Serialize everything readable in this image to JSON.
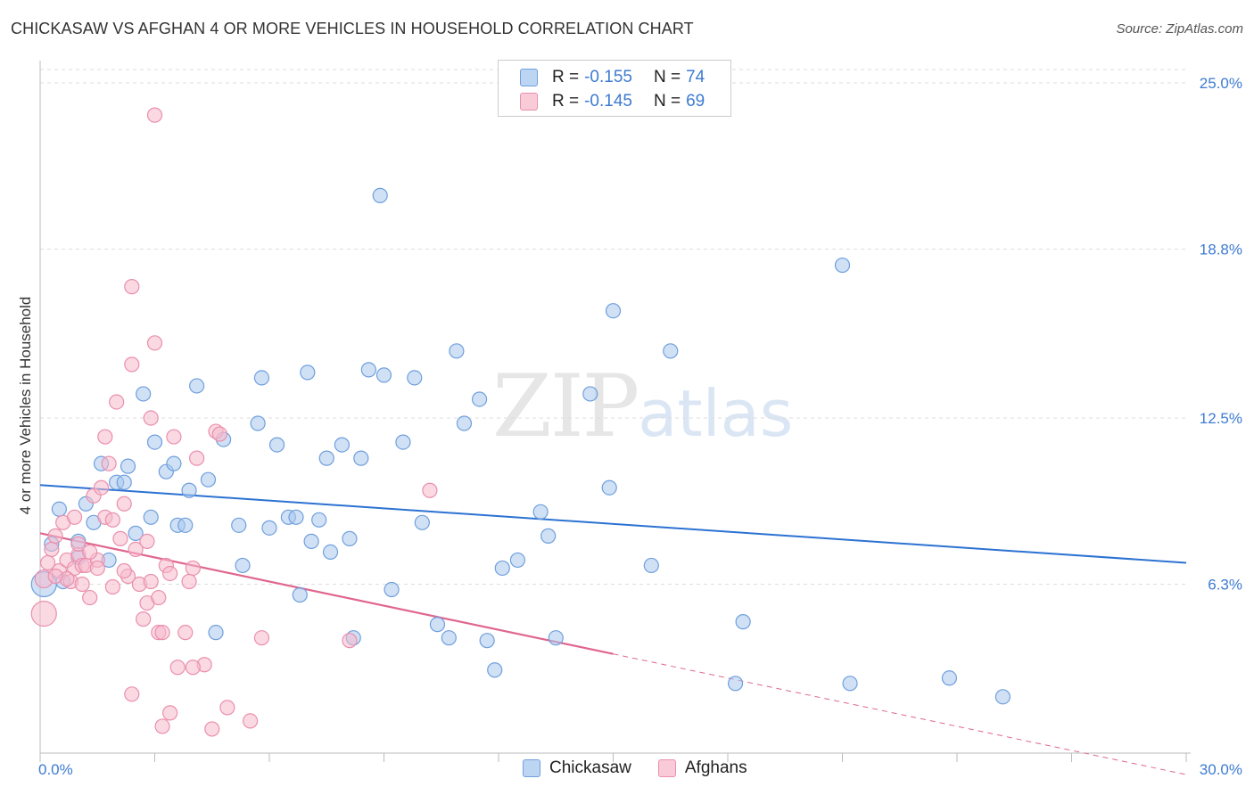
{
  "header": {
    "title": "CHICKASAW VS AFGHAN 4 OR MORE VEHICLES IN HOUSEHOLD CORRELATION CHART",
    "source": "Source: ZipAtlas.com"
  },
  "watermark": {
    "part1": "ZIP",
    "part2": "atlas"
  },
  "legend_top": {
    "rows": [
      {
        "r_label": "R =",
        "r_value": "-0.155",
        "n_label": "N =",
        "n_value": "74"
      },
      {
        "r_label": "R =",
        "r_value": "-0.145",
        "n_label": "N =",
        "n_value": "69"
      }
    ]
  },
  "legend_bottom": {
    "items": [
      "Chickasaw",
      "Afghans"
    ]
  },
  "colors": {
    "blue_fill": "#a9c8ee",
    "blue_stroke": "#6f9fdc",
    "blue_line": "#2c72d2",
    "pink_fill": "#f6b9cc",
    "pink_stroke": "#ea8fad",
    "pink_line": "#e0668e",
    "tick": "#3d7bd1",
    "grid": "#dddddd"
  },
  "chart_data": {
    "type": "scatter",
    "title": "CHICKASAW VS AFGHAN 4 OR MORE VEHICLES IN HOUSEHOLD CORRELATION CHART",
    "xlabel": "",
    "ylabel": "4 or more Vehicles in Household",
    "xlim": [
      0,
      30
    ],
    "ylim": [
      0,
      25.5
    ],
    "x_tick_labels": [
      "0.0%",
      "30.0%"
    ],
    "y_ticks": [
      6.3,
      12.5,
      18.8,
      25.0
    ],
    "y_tick_labels": [
      "6.3%",
      "12.5%",
      "18.8%",
      "25.0%"
    ],
    "series": [
      {
        "name": "Chickasaw",
        "r": -0.155,
        "n": 74,
        "trend": {
          "x0": 0,
          "y0": 10.0,
          "x1": 30,
          "y1": 7.1
        },
        "points": [
          [
            0.1,
            6.3,
            14
          ],
          [
            0.3,
            7.8,
            8
          ],
          [
            0.5,
            9.1,
            8
          ],
          [
            0.6,
            6.4,
            8
          ],
          [
            1.0,
            7.3,
            8
          ],
          [
            1.0,
            7.9,
            8
          ],
          [
            1.2,
            9.3,
            8
          ],
          [
            1.4,
            8.6,
            8
          ],
          [
            1.6,
            10.8,
            8
          ],
          [
            1.8,
            7.2,
            8
          ],
          [
            2.0,
            10.1,
            8
          ],
          [
            2.2,
            10.1,
            8
          ],
          [
            2.3,
            10.7,
            8
          ],
          [
            2.5,
            8.2,
            8
          ],
          [
            2.7,
            13.4,
            8
          ],
          [
            2.9,
            8.8,
            8
          ],
          [
            3.0,
            11.6,
            8
          ],
          [
            3.3,
            10.5,
            8
          ],
          [
            3.5,
            10.8,
            8
          ],
          [
            3.6,
            8.5,
            8
          ],
          [
            3.8,
            8.5,
            8
          ],
          [
            3.9,
            9.8,
            8
          ],
          [
            4.1,
            13.7,
            8
          ],
          [
            4.4,
            10.2,
            8
          ],
          [
            4.6,
            4.5,
            8
          ],
          [
            4.8,
            11.7,
            8
          ],
          [
            5.2,
            8.5,
            8
          ],
          [
            5.3,
            7.0,
            8
          ],
          [
            5.7,
            12.3,
            8
          ],
          [
            5.8,
            14.0,
            8
          ],
          [
            6.0,
            8.4,
            8
          ],
          [
            6.2,
            11.5,
            8
          ],
          [
            6.5,
            8.8,
            8
          ],
          [
            6.7,
            8.8,
            8
          ],
          [
            6.8,
            5.9,
            8
          ],
          [
            7.0,
            14.2,
            8
          ],
          [
            7.1,
            7.9,
            8
          ],
          [
            7.3,
            8.7,
            8
          ],
          [
            7.5,
            11.0,
            8
          ],
          [
            7.6,
            7.5,
            8
          ],
          [
            7.9,
            11.5,
            8
          ],
          [
            8.1,
            8.0,
            8
          ],
          [
            8.2,
            4.3,
            8
          ],
          [
            8.4,
            11.0,
            8
          ],
          [
            8.6,
            14.3,
            8
          ],
          [
            8.9,
            20.8,
            8
          ],
          [
            9.0,
            14.1,
            8
          ],
          [
            9.2,
            6.1,
            8
          ],
          [
            9.5,
            11.6,
            8
          ],
          [
            9.8,
            14.0,
            8
          ],
          [
            10.0,
            8.6,
            8
          ],
          [
            10.4,
            4.8,
            8
          ],
          [
            10.7,
            4.3,
            8
          ],
          [
            10.9,
            15.0,
            8
          ],
          [
            11.1,
            12.3,
            8
          ],
          [
            11.5,
            13.2,
            8
          ],
          [
            11.7,
            4.2,
            8
          ],
          [
            11.9,
            3.1,
            8
          ],
          [
            12.1,
            6.9,
            8
          ],
          [
            12.5,
            7.2,
            8
          ],
          [
            13.1,
            9.0,
            8
          ],
          [
            13.3,
            8.1,
            8
          ],
          [
            13.5,
            4.3,
            8
          ],
          [
            14.4,
            13.4,
            8
          ],
          [
            14.9,
            9.9,
            8
          ],
          [
            15.0,
            16.5,
            8
          ],
          [
            16.0,
            7.0,
            8
          ],
          [
            16.5,
            15.0,
            8
          ],
          [
            18.2,
            2.6,
            8
          ],
          [
            18.4,
            4.9,
            8
          ],
          [
            21.0,
            18.2,
            8
          ],
          [
            21.2,
            2.6,
            8
          ],
          [
            23.8,
            2.8,
            8
          ],
          [
            25.2,
            2.1,
            8
          ]
        ]
      },
      {
        "name": "Afghans",
        "r": -0.145,
        "n": 69,
        "trend": {
          "x0": 0,
          "y0": 8.2,
          "x1": 15.0,
          "y1": 3.7,
          "dash_x1": 30,
          "dash_y1": -0.8
        },
        "points": [
          [
            0.1,
            5.2,
            14
          ],
          [
            0.1,
            6.5,
            10
          ],
          [
            0.2,
            7.1,
            8
          ],
          [
            0.3,
            7.6,
            8
          ],
          [
            0.4,
            8.1,
            8
          ],
          [
            0.5,
            6.8,
            8
          ],
          [
            0.6,
            8.6,
            8
          ],
          [
            0.7,
            7.2,
            8
          ],
          [
            0.8,
            6.4,
            8
          ],
          [
            0.9,
            6.9,
            8
          ],
          [
            0.9,
            8.8,
            8
          ],
          [
            1.0,
            7.4,
            8
          ],
          [
            1.1,
            7.0,
            8
          ],
          [
            1.2,
            7.0,
            8
          ],
          [
            1.3,
            5.8,
            8
          ],
          [
            1.4,
            9.6,
            8
          ],
          [
            1.5,
            7.2,
            8
          ],
          [
            1.6,
            9.9,
            8
          ],
          [
            1.7,
            8.8,
            8
          ],
          [
            1.7,
            11.8,
            8
          ],
          [
            1.8,
            10.8,
            8
          ],
          [
            1.9,
            8.7,
            8
          ],
          [
            2.0,
            13.1,
            8
          ],
          [
            2.1,
            8.0,
            8
          ],
          [
            2.2,
            9.3,
            8
          ],
          [
            2.3,
            6.6,
            8
          ],
          [
            2.4,
            17.4,
            8
          ],
          [
            2.5,
            7.6,
            8
          ],
          [
            2.6,
            6.3,
            8
          ],
          [
            2.8,
            7.9,
            8
          ],
          [
            2.9,
            12.5,
            8
          ],
          [
            3.0,
            15.3,
            8
          ],
          [
            3.1,
            4.5,
            8
          ],
          [
            3.2,
            4.5,
            8
          ],
          [
            3.3,
            7.0,
            8
          ],
          [
            3.4,
            6.7,
            8
          ],
          [
            3.5,
            11.8,
            8
          ],
          [
            3.6,
            3.2,
            8
          ],
          [
            3.8,
            4.5,
            8
          ],
          [
            3.9,
            6.4,
            8
          ],
          [
            4.0,
            6.9,
            8
          ],
          [
            4.1,
            11.0,
            8
          ],
          [
            4.3,
            3.3,
            8
          ],
          [
            4.5,
            0.9,
            8
          ],
          [
            4.6,
            12.0,
            8
          ],
          [
            4.7,
            11.9,
            8
          ],
          [
            4.9,
            1.7,
            8
          ],
          [
            5.5,
            1.2,
            8
          ],
          [
            5.8,
            4.3,
            8
          ],
          [
            2.4,
            14.5,
            8
          ],
          [
            2.2,
            6.8,
            8
          ],
          [
            1.9,
            6.2,
            8
          ],
          [
            1.5,
            6.9,
            8
          ],
          [
            1.1,
            6.3,
            8
          ],
          [
            0.7,
            6.5,
            8
          ],
          [
            2.7,
            5.0,
            8
          ],
          [
            2.8,
            5.6,
            8
          ],
          [
            2.9,
            6.4,
            8
          ],
          [
            3.1,
            5.8,
            8
          ],
          [
            1.0,
            7.8,
            8
          ],
          [
            1.3,
            7.5,
            8
          ],
          [
            0.4,
            6.6,
            8
          ],
          [
            2.4,
            2.2,
            8
          ],
          [
            3.2,
            1.0,
            8
          ],
          [
            3.4,
            1.5,
            8
          ],
          [
            10.2,
            9.8,
            8
          ],
          [
            8.1,
            4.2,
            8
          ],
          [
            4.0,
            3.2,
            8
          ],
          [
            3.0,
            23.8,
            8
          ]
        ]
      }
    ]
  },
  "y_axis_label": "4 or more Vehicles in Household"
}
